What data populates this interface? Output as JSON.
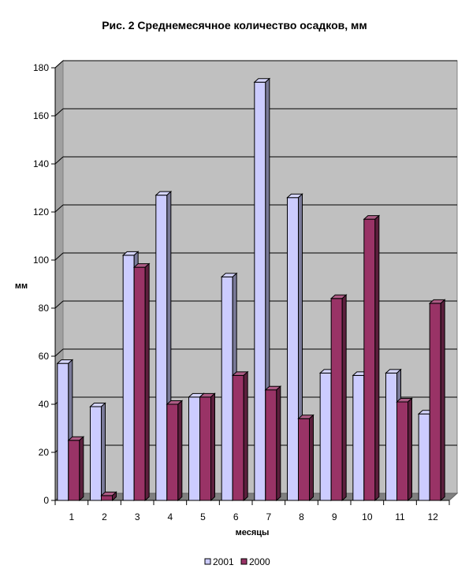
{
  "chart_data": {
    "type": "bar",
    "title": "Рис. 2 Среднемесячное количество осадков, мм",
    "xlabel": "месяцы",
    "ylabel": "мм",
    "ylim": [
      0,
      180
    ],
    "yticks": [
      0,
      20,
      40,
      60,
      80,
      100,
      120,
      140,
      160,
      180
    ],
    "categories": [
      "1",
      "2",
      "3",
      "4",
      "5",
      "6",
      "7",
      "8",
      "9",
      "10",
      "11",
      "12"
    ],
    "series": [
      {
        "name": "2001",
        "color": "#CCCCFF",
        "values": [
          57,
          39,
          102,
          127,
          43,
          93,
          174,
          126,
          53,
          52,
          53,
          36
        ]
      },
      {
        "name": "2000",
        "color": "#993366",
        "values": [
          25,
          2,
          97,
          40,
          43,
          52,
          46,
          34,
          84,
          117,
          41,
          82
        ]
      }
    ],
    "grid": true,
    "plot_background": "#C0C0C0",
    "legend_position": "bottom",
    "style": "3d-bar"
  }
}
